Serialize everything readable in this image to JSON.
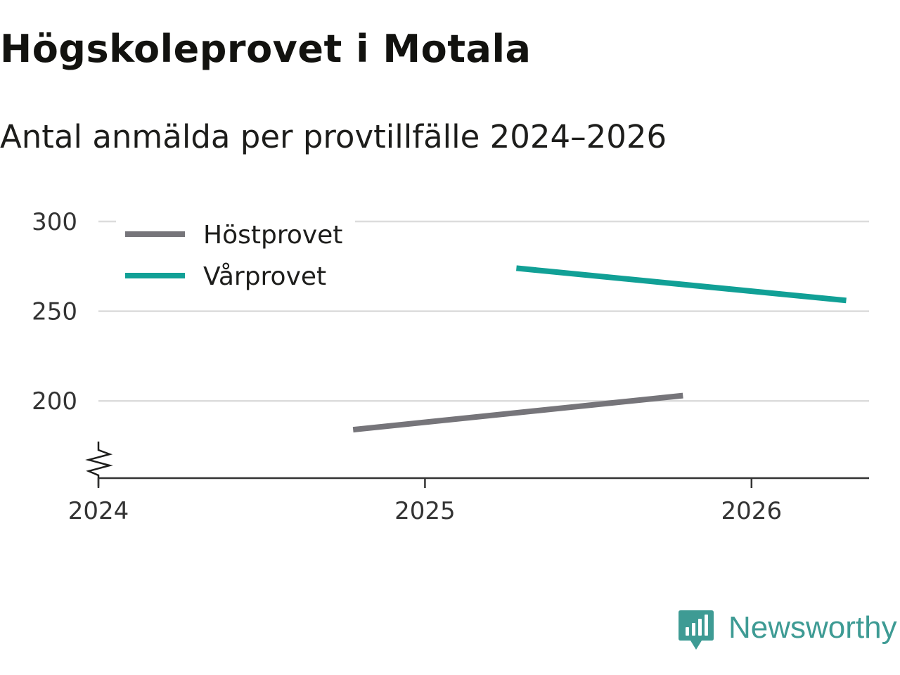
{
  "title": "Högskoleprovet i Motala",
  "subtitle": "Antal anmälda per provtillfälle 2024–2026",
  "chart_data": {
    "type": "line",
    "x_axis": {
      "type": "time",
      "range": [
        2024.0,
        2026.36
      ],
      "ticks": [
        2024,
        2025,
        2026
      ],
      "tick_labels": [
        "2024",
        "2025",
        "2026"
      ]
    },
    "y_axis": {
      "range": [
        157,
        300
      ],
      "ticks": [
        200,
        250,
        300
      ],
      "tick_labels": [
        "200",
        "250",
        "300"
      ],
      "broken_axis": true,
      "grid": true
    },
    "series": [
      {
        "name": "Höstprovet",
        "color": "#76757a",
        "x": [
          2024.78,
          2025.79
        ],
        "values": [
          184,
          203
        ]
      },
      {
        "name": "Vårprovet",
        "color": "#11a096",
        "x": [
          2025.28,
          2026.29
        ],
        "values": [
          274,
          256
        ]
      }
    ],
    "legend_placement": "top-left",
    "xlabel": "",
    "ylabel": ""
  },
  "brand": {
    "name": "Newsworthy",
    "color": "#3e9b94"
  }
}
